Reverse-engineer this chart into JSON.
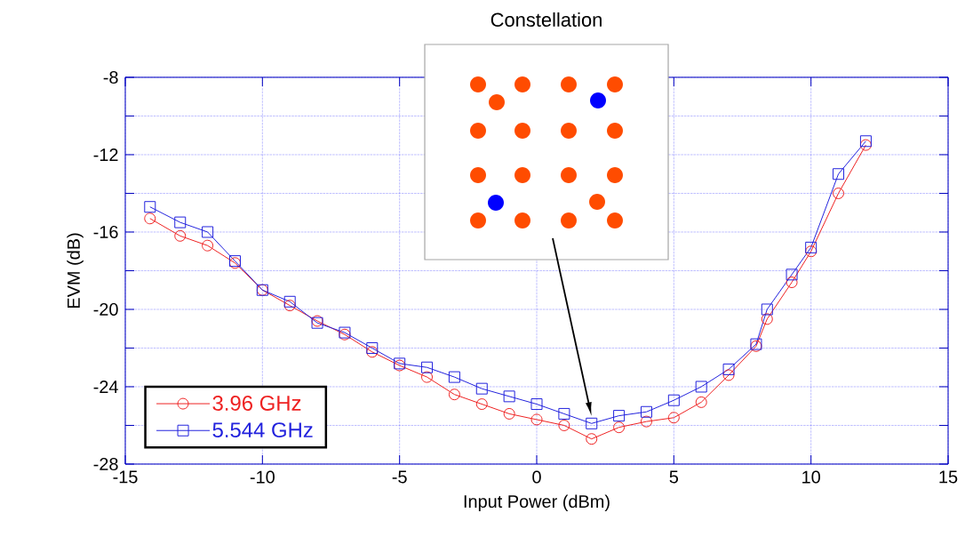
{
  "chart_data": {
    "type": "line",
    "xlabel": "Input Power (dBm)",
    "ylabel": "EVM (dB)",
    "xlim": [
      -15,
      15
    ],
    "xticks": [
      -15,
      -10,
      -5,
      0,
      5,
      10,
      15
    ],
    "ylim": [
      -28,
      -8
    ],
    "yticks": [
      -28,
      {
        "value": -26,
        "label": null
      },
      -24,
      {
        "value": -22,
        "label": null
      },
      -20,
      {
        "value": -18,
        "label": null
      },
      -16,
      {
        "value": -14,
        "label": null
      },
      -12,
      {
        "value": -10,
        "label": null
      },
      -8
    ],
    "grid": true,
    "legend": "bottom left",
    "line_style": "solid",
    "x": [
      -14.1,
      -13,
      -12,
      -11,
      -10,
      -9,
      -8,
      -7,
      -6,
      -5,
      -4,
      -3,
      -2,
      -1,
      0,
      1,
      2,
      3,
      4,
      5,
      6,
      7,
      8,
      8.4,
      9.3,
      10,
      11,
      12
    ],
    "series": [
      {
        "name": "3.96 GHz",
        "color": "#ee2222",
        "marker": "circle",
        "values": [
          -15.3,
          -16.2,
          -16.7,
          -17.6,
          -19.0,
          -19.8,
          -20.6,
          -21.3,
          -22.2,
          -22.9,
          -23.5,
          -24.4,
          -24.9,
          -25.4,
          -25.7,
          -26.0,
          -26.7,
          -26.1,
          -25.8,
          -25.6,
          -24.8,
          -23.4,
          -21.9,
          -20.5,
          -18.6,
          -17.0,
          -14.0,
          -11.5
        ]
      },
      {
        "name": "5.544 GHz",
        "color": "#2222dd",
        "marker": "square",
        "values": [
          -14.7,
          -15.5,
          -16.0,
          -17.5,
          -19.0,
          -19.6,
          -20.7,
          -21.2,
          -22.0,
          -22.8,
          -23.0,
          -23.5,
          -24.1,
          -24.5,
          -24.9,
          -25.4,
          -25.9,
          -25.5,
          -25.3,
          -24.7,
          -24.0,
          -23.1,
          -21.8,
          -20.0,
          -18.2,
          -16.8,
          -13.0,
          -11.3
        ]
      }
    ],
    "annotations": [
      "Constellation"
    ]
  }
}
